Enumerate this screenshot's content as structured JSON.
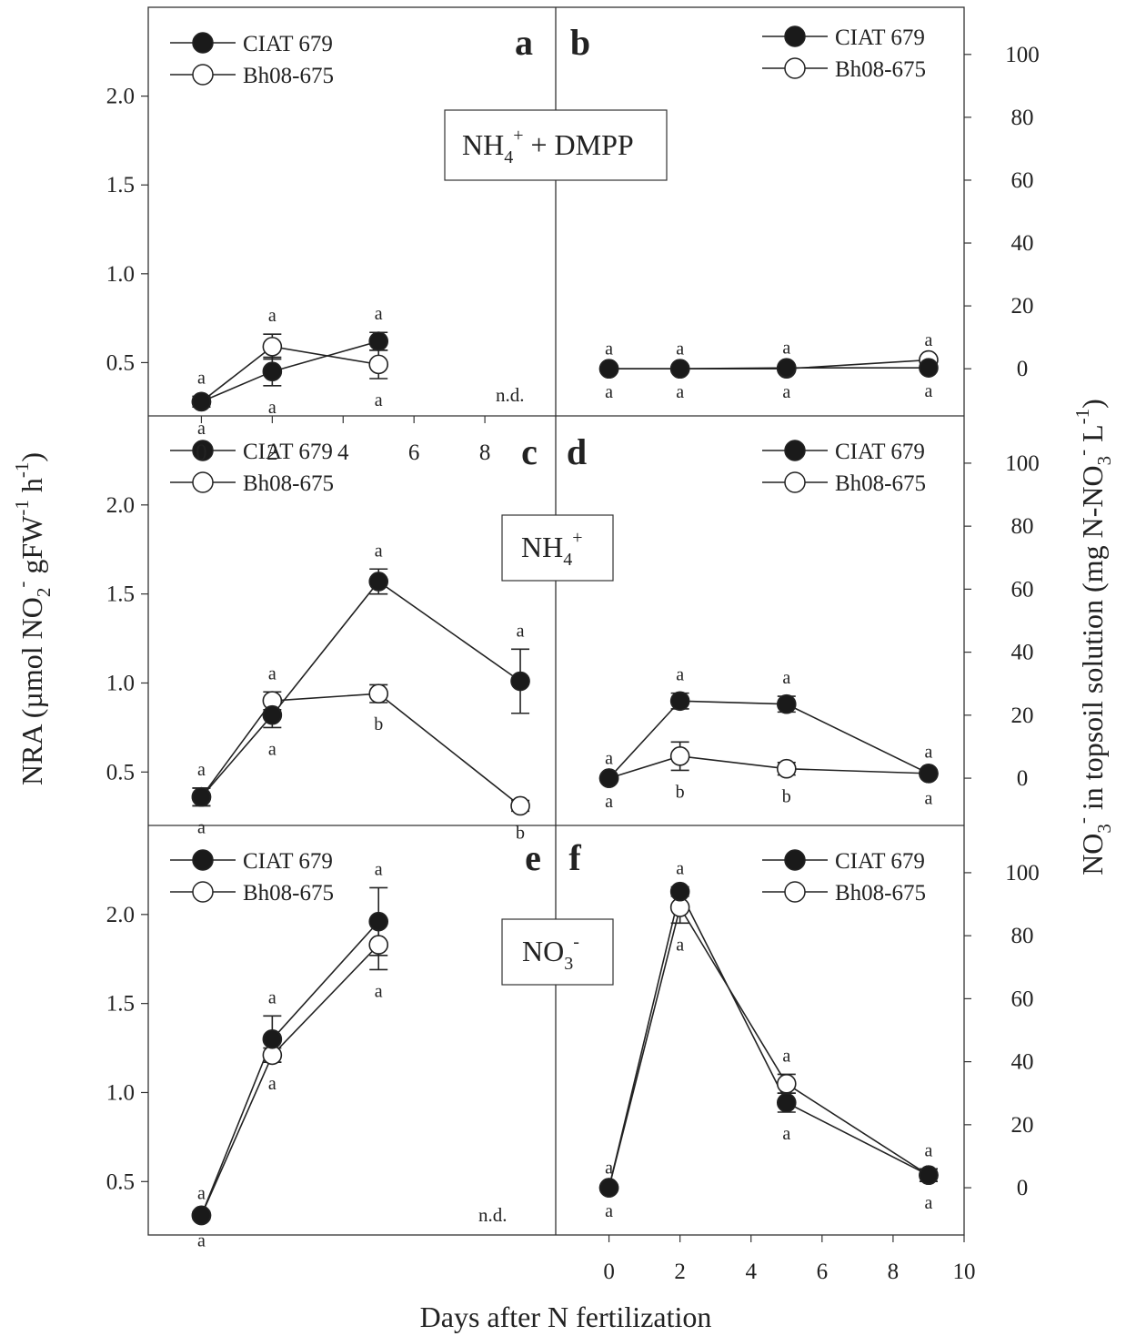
{
  "figure": {
    "x_label": "Days after N fertilization",
    "y_left_label": "NRA (µmol NO",
    "y_left_label_parts": [
      "2",
      "-",
      " gFW",
      "-1",
      " h",
      "-1",
      ")"
    ],
    "y_right_label_parts": [
      "NO",
      "3",
      "-",
      " in topsoil solution (mg N-NO",
      "3",
      "-",
      " L",
      "-1",
      ")"
    ]
  },
  "treatments": {
    "row1": {
      "main": "NH",
      "sub": "4",
      "sup": "+",
      "tail": " + DMPP"
    },
    "row2": {
      "main": "NH",
      "sub": "4",
      "sup": "+",
      "tail": ""
    },
    "row3": {
      "main": "NO",
      "sub": "3",
      "sup": "-",
      "tail": ""
    }
  },
  "legend": {
    "series1": "CIAT 679",
    "series2": "Bh08-675"
  },
  "nd_label": "n.d.",
  "colors": {
    "series1": "#1a1a1a",
    "series2": "#ffffff",
    "line": "#222222"
  },
  "chart_data": [
    {
      "panel": "a",
      "type": "line",
      "treatment": "NH4+ + DMPP",
      "measure": "NRA",
      "xlim": [
        -1.5,
        10
      ],
      "ylim": [
        0.2,
        2.5
      ],
      "yticks": [
        0.5,
        1.0,
        1.5,
        2.0
      ],
      "xticks": [
        0,
        2,
        4,
        6,
        8
      ],
      "series": [
        {
          "name": "CIAT 679",
          "x": [
            0,
            2,
            5
          ],
          "y": [
            0.28,
            0.45,
            0.62
          ],
          "err": [
            0.03,
            0.08,
            0.05
          ],
          "sig": [
            "a",
            "a",
            "a"
          ]
        },
        {
          "name": "Bh08-675",
          "x": [
            0,
            2,
            5
          ],
          "y": [
            0.28,
            0.59,
            0.49
          ],
          "err": [
            0.03,
            0.07,
            0.08
          ],
          "sig": [
            "a",
            "a",
            "a"
          ]
        }
      ],
      "annotations": [
        "n.d."
      ]
    },
    {
      "panel": "b",
      "type": "line",
      "treatment": "NH4+ + DMPP",
      "measure": "NO3- in topsoil solution",
      "xlim": [
        -1.5,
        10
      ],
      "ylim": [
        -15,
        115
      ],
      "yticks": [
        0,
        20,
        40,
        60,
        80,
        100
      ],
      "series": [
        {
          "name": "CIAT 679",
          "x": [
            0,
            2,
            5,
            9
          ],
          "y": [
            0,
            0,
            0.3,
            0.3
          ],
          "err": [
            0.5,
            0.5,
            0.5,
            0.5
          ],
          "sig": [
            "a",
            "a",
            "a",
            "a"
          ]
        },
        {
          "name": "Bh08-675",
          "x": [
            0,
            2,
            5,
            9
          ],
          "y": [
            0,
            0,
            0,
            2.8
          ],
          "err": [
            0.5,
            0.5,
            0.5,
            0.5
          ],
          "sig": [
            "a",
            "a",
            "a",
            "a"
          ]
        }
      ]
    },
    {
      "panel": "c",
      "type": "line",
      "treatment": "NH4+",
      "measure": "NRA",
      "xlim": [
        -1.5,
        10
      ],
      "ylim": [
        0.2,
        2.5
      ],
      "yticks": [
        0.5,
        1.0,
        1.5,
        2.0
      ],
      "series": [
        {
          "name": "CIAT 679",
          "x": [
            0,
            2,
            5,
            9
          ],
          "y": [
            0.36,
            0.82,
            1.57,
            1.01
          ],
          "err": [
            0.05,
            0.07,
            0.07,
            0.18
          ],
          "sig": [
            "a",
            "a",
            "a",
            "a"
          ]
        },
        {
          "name": "Bh08-675",
          "x": [
            0,
            2,
            5,
            9
          ],
          "y": [
            0.36,
            0.9,
            0.94,
            0.31
          ],
          "err": [
            0.05,
            0.05,
            0.05,
            0.03
          ],
          "sig": [
            "a",
            "a",
            "b",
            "b"
          ]
        }
      ]
    },
    {
      "panel": "d",
      "type": "line",
      "treatment": "NH4+",
      "measure": "NO3- in topsoil solution",
      "xlim": [
        -1.5,
        10
      ],
      "ylim": [
        -15,
        115
      ],
      "yticks": [
        0,
        20,
        40,
        60,
        80,
        100
      ],
      "series": [
        {
          "name": "CIAT 679",
          "x": [
            0,
            2,
            5,
            9
          ],
          "y": [
            0,
            24.5,
            23.5,
            1.5
          ],
          "err": [
            0.5,
            2.5,
            2.5,
            1
          ],
          "sig": [
            "a",
            "a",
            "a",
            "a"
          ]
        },
        {
          "name": "Bh08-675",
          "x": [
            0,
            2,
            5,
            9
          ],
          "y": [
            0,
            7,
            3,
            1.5
          ],
          "err": [
            0.5,
            4.5,
            2,
            1
          ],
          "sig": [
            "a",
            "b",
            "b",
            "a"
          ]
        }
      ]
    },
    {
      "panel": "e",
      "type": "line",
      "treatment": "NO3-",
      "measure": "NRA",
      "xlim": [
        -1.5,
        10
      ],
      "ylim": [
        0.2,
        2.5
      ],
      "yticks": [
        0.5,
        1.0,
        1.5,
        2.0
      ],
      "series": [
        {
          "name": "CIAT 679",
          "x": [
            0,
            2,
            5
          ],
          "y": [
            0.31,
            1.3,
            1.96
          ],
          "err": [
            0.02,
            0.13,
            0.19
          ],
          "sig": [
            "a",
            "a",
            "a"
          ]
        },
        {
          "name": "Bh08-675",
          "x": [
            0,
            2,
            5
          ],
          "y": [
            0.31,
            1.21,
            1.83
          ],
          "err": [
            0.02,
            0.04,
            0.14
          ],
          "sig": [
            "a",
            "a",
            "a"
          ]
        }
      ],
      "annotations": [
        "n.d."
      ]
    },
    {
      "panel": "f",
      "type": "line",
      "treatment": "NO3-",
      "measure": "NO3- in topsoil solution",
      "xlim": [
        -1.5,
        10
      ],
      "ylim": [
        -15,
        115
      ],
      "yticks": [
        0,
        20,
        40,
        60,
        80,
        100
      ],
      "xticks": [
        0,
        2,
        4,
        6,
        8,
        10
      ],
      "series": [
        {
          "name": "CIAT 679",
          "x": [
            0,
            2,
            5,
            9
          ],
          "y": [
            0,
            94,
            27,
            4
          ],
          "err": [
            0.5,
            1.5,
            3,
            2
          ],
          "sig": [
            "a",
            "a",
            "a",
            "a"
          ]
        },
        {
          "name": "Bh08-675",
          "x": [
            0,
            2,
            5,
            9
          ],
          "y": [
            0,
            89,
            33,
            4
          ],
          "err": [
            0.5,
            5,
            3,
            2
          ],
          "sig": [
            "a",
            "a",
            "a",
            "a"
          ]
        }
      ]
    }
  ]
}
